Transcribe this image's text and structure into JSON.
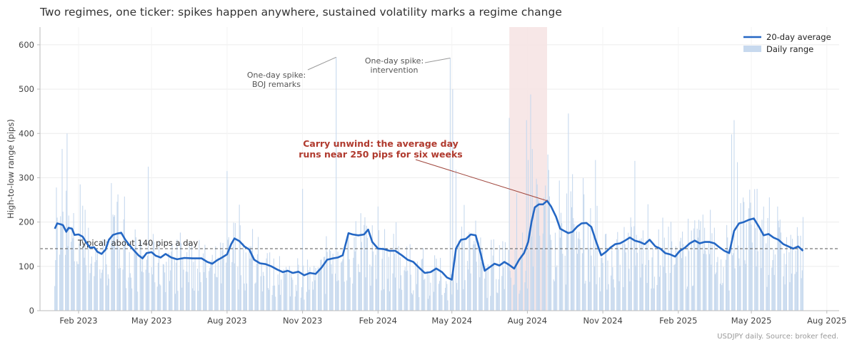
{
  "title": "Two regimes, one ticker: spikes happen anywhere, sustained volatility marks a regime change",
  "footnote": "USDJPY daily. Source: broker feed.",
  "colors": {
    "bar": "#c7d9ee",
    "line": "#2467c4",
    "band": "#f6e3e3",
    "annotation_red": "#b03a2e",
    "reference": "#555555"
  },
  "chart_data": {
    "type": "bar",
    "ylabel": "High-to-low range (pips)",
    "ylim": [
      0,
      640
    ],
    "yticks": [
      0,
      100,
      200,
      300,
      400,
      500,
      600
    ],
    "xticks": [
      {
        "date": "2023-02-01",
        "label": "Feb 2023"
      },
      {
        "date": "2023-05-01",
        "label": "May 2023"
      },
      {
        "date": "2023-08-01",
        "label": "Aug 2023"
      },
      {
        "date": "2023-11-01",
        "label": "Nov 2023"
      },
      {
        "date": "2024-02-01",
        "label": "Feb 2024"
      },
      {
        "date": "2024-05-01",
        "label": "May 2024"
      },
      {
        "date": "2024-08-01",
        "label": "Aug 2024"
      },
      {
        "date": "2024-11-01",
        "label": "Nov 2024"
      },
      {
        "date": "2025-02-01",
        "label": "Feb 2025"
      },
      {
        "date": "2025-05-01",
        "label": "May 2025"
      },
      {
        "date": "2025-08-01",
        "label": "Aug 2025"
      }
    ],
    "xlim": [
      "2022-12-16",
      "2025-08-16"
    ],
    "grid": true,
    "legend": {
      "placement": "top-right",
      "entries": [
        "20-day average",
        "Daily range"
      ]
    },
    "series": [
      {
        "name": "20-day average",
        "type": "line",
        "points": [
          [
            "2023-01-03",
            185
          ],
          [
            "2023-01-06",
            197
          ],
          [
            "2023-01-10",
            195
          ],
          [
            "2023-01-13",
            193
          ],
          [
            "2023-01-17",
            178
          ],
          [
            "2023-01-20",
            187
          ],
          [
            "2023-01-24",
            185
          ],
          [
            "2023-01-27",
            171
          ],
          [
            "2023-02-01",
            172
          ],
          [
            "2023-02-06",
            167
          ],
          [
            "2023-02-10",
            155
          ],
          [
            "2023-02-15",
            142
          ],
          [
            "2023-02-20",
            143
          ],
          [
            "2023-02-24",
            133
          ],
          [
            "2023-03-01",
            128
          ],
          [
            "2023-03-06",
            138
          ],
          [
            "2023-03-10",
            160
          ],
          [
            "2023-03-15",
            171
          ],
          [
            "2023-03-20",
            174
          ],
          [
            "2023-03-25",
            176
          ],
          [
            "2023-03-30",
            160
          ],
          [
            "2023-04-04",
            148
          ],
          [
            "2023-04-10",
            135
          ],
          [
            "2023-04-15",
            125
          ],
          [
            "2023-04-20",
            118
          ],
          [
            "2023-04-25",
            130
          ],
          [
            "2023-05-01",
            132
          ],
          [
            "2023-05-06",
            124
          ],
          [
            "2023-05-12",
            120
          ],
          [
            "2023-05-18",
            128
          ],
          [
            "2023-05-25",
            120
          ],
          [
            "2023-06-01",
            116
          ],
          [
            "2023-06-10",
            119
          ],
          [
            "2023-06-20",
            118
          ],
          [
            "2023-07-01",
            118
          ],
          [
            "2023-07-08",
            110
          ],
          [
            "2023-07-14",
            106
          ],
          [
            "2023-07-20",
            114
          ],
          [
            "2023-07-26",
            120
          ],
          [
            "2023-08-01",
            127
          ],
          [
            "2023-08-06",
            150
          ],
          [
            "2023-08-10",
            163
          ],
          [
            "2023-08-16",
            157
          ],
          [
            "2023-08-22",
            145
          ],
          [
            "2023-08-28",
            138
          ],
          [
            "2023-09-03",
            115
          ],
          [
            "2023-09-10",
            107
          ],
          [
            "2023-09-17",
            105
          ],
          [
            "2023-09-24",
            100
          ],
          [
            "2023-10-01",
            93
          ],
          [
            "2023-10-08",
            87
          ],
          [
            "2023-10-14",
            90
          ],
          [
            "2023-10-20",
            85
          ],
          [
            "2023-10-27",
            88
          ],
          [
            "2023-11-03",
            80
          ],
          [
            "2023-11-10",
            85
          ],
          [
            "2023-11-17",
            83
          ],
          [
            "2023-11-24",
            97
          ],
          [
            "2023-12-01",
            115
          ],
          [
            "2023-12-08",
            118
          ],
          [
            "2023-12-14",
            120
          ],
          [
            "2023-12-20",
            125
          ],
          [
            "2023-12-27",
            175
          ],
          [
            "2024-01-01",
            172
          ],
          [
            "2024-01-08",
            170
          ],
          [
            "2024-01-15",
            172
          ],
          [
            "2024-01-20",
            183
          ],
          [
            "2024-01-25",
            155
          ],
          [
            "2024-02-01",
            140
          ],
          [
            "2024-02-08",
            139
          ],
          [
            "2024-02-15",
            135
          ],
          [
            "2024-02-22",
            135
          ],
          [
            "2024-03-01",
            125
          ],
          [
            "2024-03-08",
            115
          ],
          [
            "2024-03-15",
            110
          ],
          [
            "2024-03-22",
            97
          ],
          [
            "2024-03-29",
            85
          ],
          [
            "2024-04-05",
            87
          ],
          [
            "2024-04-12",
            95
          ],
          [
            "2024-04-19",
            87
          ],
          [
            "2024-04-25",
            75
          ],
          [
            "2024-05-01",
            70
          ],
          [
            "2024-05-06",
            140
          ],
          [
            "2024-05-12",
            160
          ],
          [
            "2024-05-18",
            162
          ],
          [
            "2024-05-24",
            172
          ],
          [
            "2024-05-30",
            170
          ],
          [
            "2024-06-05",
            130
          ],
          [
            "2024-06-10",
            90
          ],
          [
            "2024-06-16",
            98
          ],
          [
            "2024-06-22",
            106
          ],
          [
            "2024-06-28",
            102
          ],
          [
            "2024-07-04",
            110
          ],
          [
            "2024-07-10",
            103
          ],
          [
            "2024-07-16",
            95
          ],
          [
            "2024-07-22",
            115
          ],
          [
            "2024-07-28",
            130
          ],
          [
            "2024-08-02",
            155
          ],
          [
            "2024-08-06",
            200
          ],
          [
            "2024-08-10",
            233
          ],
          [
            "2024-08-15",
            240
          ],
          [
            "2024-08-20",
            240
          ],
          [
            "2024-08-25",
            248
          ],
          [
            "2024-08-30",
            235
          ],
          [
            "2024-09-05",
            212
          ],
          [
            "2024-09-10",
            185
          ],
          [
            "2024-09-15",
            180
          ],
          [
            "2024-09-20",
            175
          ],
          [
            "2024-09-25",
            178
          ],
          [
            "2024-10-01",
            190
          ],
          [
            "2024-10-06",
            197
          ],
          [
            "2024-10-12",
            198
          ],
          [
            "2024-10-18",
            189
          ],
          [
            "2024-10-24",
            155
          ],
          [
            "2024-10-30",
            125
          ],
          [
            "2024-11-05",
            133
          ],
          [
            "2024-11-10",
            142
          ],
          [
            "2024-11-16",
            150
          ],
          [
            "2024-11-22",
            152
          ],
          [
            "2024-11-28",
            158
          ],
          [
            "2024-12-04",
            165
          ],
          [
            "2024-12-10",
            158
          ],
          [
            "2024-12-16",
            155
          ],
          [
            "2024-12-22",
            150
          ],
          [
            "2024-12-28",
            160
          ],
          [
            "2025-01-04",
            145
          ],
          [
            "2025-01-10",
            140
          ],
          [
            "2025-01-16",
            130
          ],
          [
            "2025-01-22",
            127
          ],
          [
            "2025-01-28",
            122
          ],
          [
            "2025-02-03",
            135
          ],
          [
            "2025-02-09",
            142
          ],
          [
            "2025-02-15",
            152
          ],
          [
            "2025-02-21",
            158
          ],
          [
            "2025-02-27",
            152
          ],
          [
            "2025-03-05",
            155
          ],
          [
            "2025-03-11",
            155
          ],
          [
            "2025-03-17",
            152
          ],
          [
            "2025-03-23",
            143
          ],
          [
            "2025-03-29",
            135
          ],
          [
            "2025-04-04",
            130
          ],
          [
            "2025-04-10",
            180
          ],
          [
            "2025-04-16",
            197
          ],
          [
            "2025-04-22",
            200
          ],
          [
            "2025-04-28",
            205
          ],
          [
            "2025-05-04",
            208
          ],
          [
            "2025-05-10",
            190
          ],
          [
            "2025-05-16",
            170
          ],
          [
            "2025-05-22",
            173
          ],
          [
            "2025-05-28",
            165
          ],
          [
            "2025-06-03",
            160
          ],
          [
            "2025-06-09",
            150
          ],
          [
            "2025-06-15",
            145
          ],
          [
            "2025-06-21",
            140
          ],
          [
            "2025-06-27",
            145
          ],
          [
            "2025-07-03",
            135
          ]
        ]
      },
      {
        "name": "Daily range",
        "type": "bar",
        "start": "2023-01-03",
        "end": "2025-07-03",
        "spikes": [
          [
            "2023-01-05",
            278
          ],
          [
            "2023-01-12",
            365
          ],
          [
            "2023-01-18",
            400
          ],
          [
            "2023-02-03",
            285
          ],
          [
            "2023-03-13",
            288
          ],
          [
            "2023-04-27",
            325
          ],
          [
            "2023-08-01",
            315
          ],
          [
            "2023-10-07",
            285
          ],
          [
            "2023-11-01",
            275
          ],
          [
            "2023-12-12",
            572
          ],
          [
            "2023-12-16",
            330
          ],
          [
            "2024-01-11",
            220
          ],
          [
            "2024-02-01",
            235
          ],
          [
            "2024-04-29",
            570
          ],
          [
            "2024-05-02",
            500
          ],
          [
            "2024-05-06",
            318
          ],
          [
            "2024-07-10",
            435
          ],
          [
            "2024-07-19",
            265
          ],
          [
            "2024-07-31",
            430
          ],
          [
            "2024-08-02",
            340
          ],
          [
            "2024-08-05",
            488
          ],
          [
            "2024-08-07",
            365
          ],
          [
            "2024-08-13",
            285
          ],
          [
            "2024-08-21",
            255
          ],
          [
            "2024-09-20",
            445
          ],
          [
            "2024-09-25",
            308
          ],
          [
            "2024-10-23",
            340
          ],
          [
            "2024-12-10",
            338
          ],
          [
            "2025-04-07",
            398
          ],
          [
            "2025-04-10",
            430
          ],
          [
            "2025-04-14",
            335
          ],
          [
            "2025-05-08",
            275
          ],
          [
            "2025-06-02",
            235
          ]
        ]
      }
    ],
    "reference_line": {
      "y": 140,
      "label": "Typical: about 140 pips a day"
    },
    "shaded_region": {
      "start": "2024-07-10",
      "end": "2024-08-25"
    },
    "annotations": [
      {
        "text": [
          "One-day spike:",
          "BOJ remarks"
        ],
        "target_date": "2023-12-12",
        "target_y": 572
      },
      {
        "text": [
          "One-day spike:",
          "intervention"
        ],
        "target_date": "2024-04-29",
        "target_y": 570
      },
      {
        "text": [
          "Carry unwind: the average day",
          "runs near 250 pips for six weeks"
        ],
        "target_date": "2024-08-25",
        "target_y": 248
      }
    ]
  }
}
